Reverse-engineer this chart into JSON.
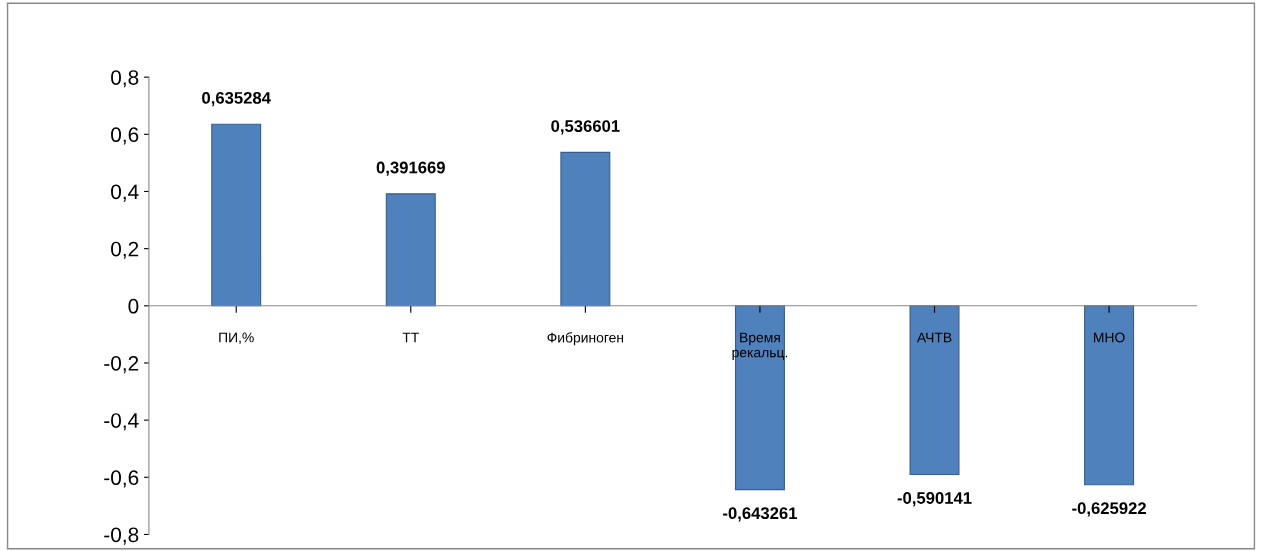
{
  "chart_data": {
    "type": "bar",
    "categories": [
      "ПИ,%",
      "ТТ",
      "Фибриноген",
      "Время\nрекальц.",
      "АЧТВ",
      "МНО"
    ],
    "values": [
      0.635284,
      0.391669,
      0.536601,
      -0.643261,
      -0.590141,
      -0.625922
    ],
    "value_labels": [
      "0,635284",
      "0,391669",
      "0,536601",
      "-0,643261",
      "-0,590141",
      "-0,625922"
    ],
    "color": "#4f81bd",
    "ylim": [
      -0.8,
      0.8
    ],
    "yticks": [
      {
        "value": -0.8,
        "label": "-0,8"
      },
      {
        "value": -0.6,
        "label": "-0,6"
      },
      {
        "value": -0.4,
        "label": "-0,4"
      },
      {
        "value": -0.2,
        "label": "-0,2"
      },
      0,
      {
        "value": 0.2,
        "label": "0,2"
      },
      {
        "value": 0.4,
        "label": "0,4"
      },
      {
        "value": 0.6,
        "label": "0,6"
      },
      {
        "value": 0.8,
        "label": "0,8"
      }
    ],
    "grid": false,
    "legend": false
  }
}
